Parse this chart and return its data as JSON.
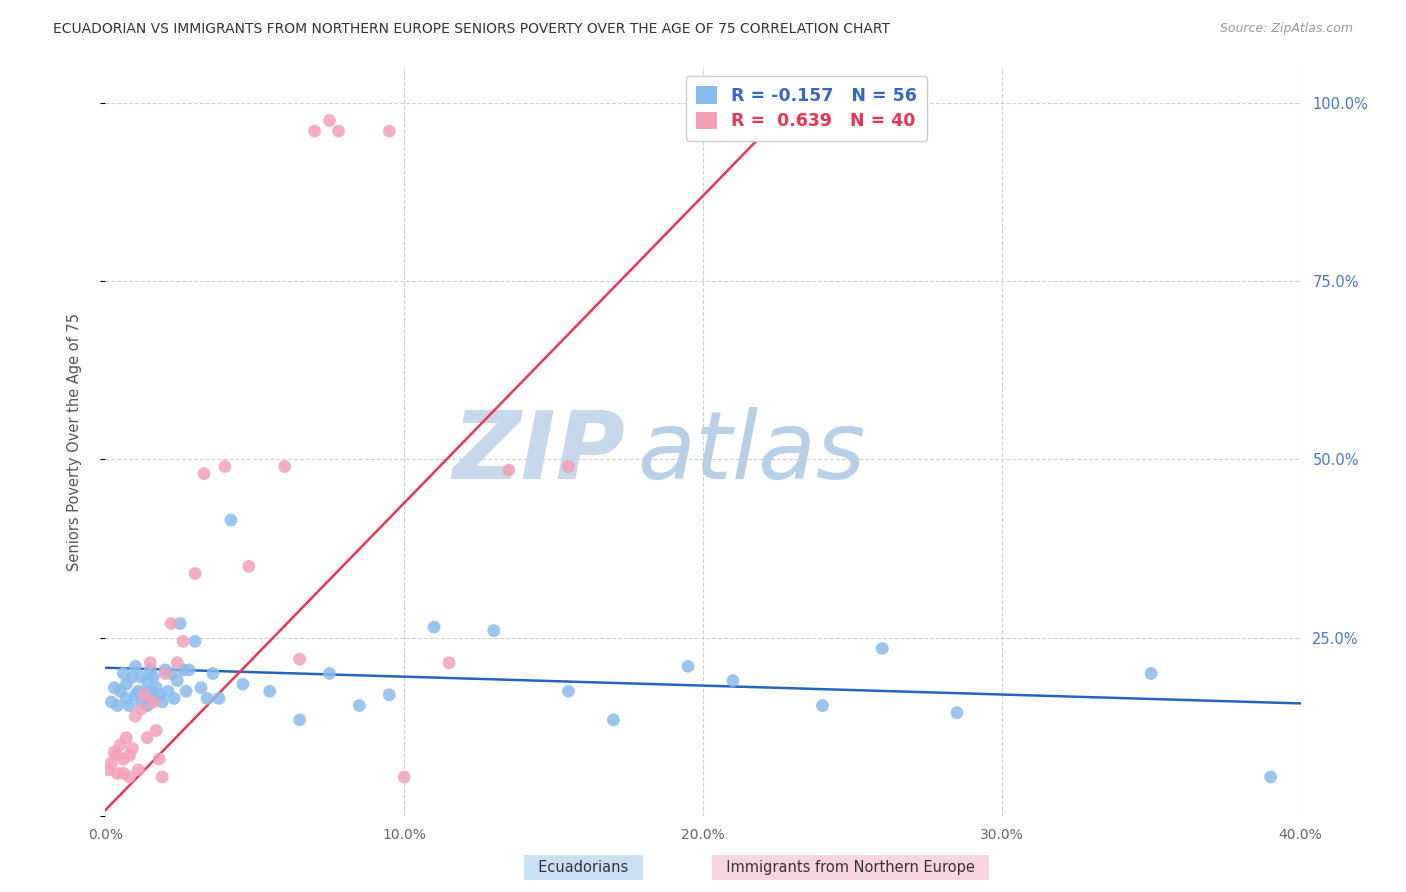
{
  "title": "ECUADORIAN VS IMMIGRANTS FROM NORTHERN EUROPE SENIORS POVERTY OVER THE AGE OF 75 CORRELATION CHART",
  "source": "Source: ZipAtlas.com",
  "ylabel": "Seniors Poverty Over the Age of 75",
  "xmin": 0.0,
  "xmax": 0.4,
  "ymin": 0.0,
  "ymax": 1.05,
  "ytick_positions": [
    0.0,
    0.25,
    0.5,
    0.75,
    1.0
  ],
  "ytick_labels": [
    "",
    "25.0%",
    "50.0%",
    "75.0%",
    "100.0%"
  ],
  "xtick_positions": [
    0.0,
    0.1,
    0.2,
    0.3,
    0.4
  ],
  "xtick_labels": [
    "0.0%",
    "10.0%",
    "20.0%",
    "30.0%",
    "40.0%"
  ],
  "grid_color": "#d0d0d0",
  "background_color": "#ffffff",
  "legend_R_blue": "-0.157",
  "legend_N_blue": "56",
  "legend_R_pink": "0.639",
  "legend_N_pink": "40",
  "blue_color": "#88bbee",
  "pink_color": "#f4a0b8",
  "trendline_blue_color": "#2266bb",
  "trendline_pink_color": "#ee3355",
  "blue_x": [
    0.002,
    0.003,
    0.004,
    0.005,
    0.006,
    0.007,
    0.007,
    0.008,
    0.009,
    0.01,
    0.01,
    0.011,
    0.012,
    0.012,
    0.013,
    0.014,
    0.014,
    0.015,
    0.015,
    0.016,
    0.016,
    0.017,
    0.018,
    0.019,
    0.02,
    0.021,
    0.022,
    0.023,
    0.024,
    0.025,
    0.026,
    0.027,
    0.028,
    0.03,
    0.032,
    0.034,
    0.036,
    0.038,
    0.042,
    0.046,
    0.055,
    0.065,
    0.075,
    0.085,
    0.095,
    0.11,
    0.13,
    0.155,
    0.17,
    0.195,
    0.21,
    0.24,
    0.26,
    0.285,
    0.35,
    0.39
  ],
  "blue_y": [
    0.16,
    0.18,
    0.155,
    0.175,
    0.2,
    0.185,
    0.165,
    0.155,
    0.195,
    0.21,
    0.17,
    0.175,
    0.16,
    0.195,
    0.175,
    0.19,
    0.155,
    0.205,
    0.175,
    0.165,
    0.195,
    0.18,
    0.17,
    0.16,
    0.205,
    0.175,
    0.2,
    0.165,
    0.19,
    0.27,
    0.205,
    0.175,
    0.205,
    0.245,
    0.18,
    0.165,
    0.2,
    0.165,
    0.415,
    0.185,
    0.175,
    0.135,
    0.2,
    0.155,
    0.17,
    0.265,
    0.26,
    0.175,
    0.135,
    0.21,
    0.19,
    0.155,
    0.235,
    0.145,
    0.2,
    0.055
  ],
  "pink_x": [
    0.001,
    0.002,
    0.003,
    0.004,
    0.004,
    0.005,
    0.006,
    0.006,
    0.007,
    0.008,
    0.008,
    0.009,
    0.01,
    0.011,
    0.012,
    0.013,
    0.014,
    0.015,
    0.016,
    0.017,
    0.018,
    0.019,
    0.02,
    0.022,
    0.024,
    0.026,
    0.03,
    0.033,
    0.04,
    0.048,
    0.06,
    0.065,
    0.07,
    0.075,
    0.078,
    0.095,
    0.1,
    0.115,
    0.135,
    0.155
  ],
  "pink_y": [
    0.065,
    0.075,
    0.09,
    0.085,
    0.06,
    0.1,
    0.08,
    0.06,
    0.11,
    0.085,
    0.055,
    0.095,
    0.14,
    0.065,
    0.15,
    0.17,
    0.11,
    0.215,
    0.16,
    0.12,
    0.08,
    0.055,
    0.2,
    0.27,
    0.215,
    0.245,
    0.34,
    0.48,
    0.49,
    0.35,
    0.49,
    0.22,
    0.96,
    0.975,
    0.96,
    0.96,
    0.055,
    0.215,
    0.485,
    0.49
  ],
  "blue_trendline_x": [
    0.0,
    0.4
  ],
  "blue_trendline_y": [
    0.208,
    0.158
  ],
  "pink_trendline_x": [
    -0.002,
    0.235
  ],
  "pink_trendline_y": [
    0.0,
    1.02
  ]
}
